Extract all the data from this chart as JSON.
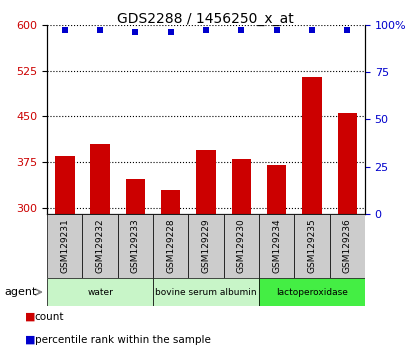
{
  "title": "GDS2288 / 1456250_x_at",
  "samples": [
    "GSM129231",
    "GSM129232",
    "GSM129233",
    "GSM129228",
    "GSM129229",
    "GSM129230",
    "GSM129234",
    "GSM129235",
    "GSM129236"
  ],
  "count_values": [
    385,
    405,
    348,
    330,
    395,
    380,
    370,
    515,
    455
  ],
  "percentile_values": [
    97,
    97,
    96,
    96,
    97,
    97,
    97,
    97,
    97
  ],
  "ylim_left": [
    290,
    600
  ],
  "ylim_right": [
    0,
    100
  ],
  "yticks_left": [
    300,
    375,
    450,
    525,
    600
  ],
  "yticks_right": [
    0,
    25,
    50,
    75,
    100
  ],
  "bar_color": "#cc0000",
  "dot_color": "#0000cc",
  "left_axis_color": "#cc0000",
  "right_axis_color": "#0000cc",
  "sample_box_color": "#cccccc",
  "group_data": [
    {
      "label": "water",
      "start": 0,
      "end": 3,
      "color": "#c8f5c8"
    },
    {
      "label": "bovine serum albumin",
      "start": 3,
      "end": 6,
      "color": "#c8f5c8"
    },
    {
      "label": "lactoperoxidase",
      "start": 6,
      "end": 9,
      "color": "#44ee44"
    }
  ]
}
